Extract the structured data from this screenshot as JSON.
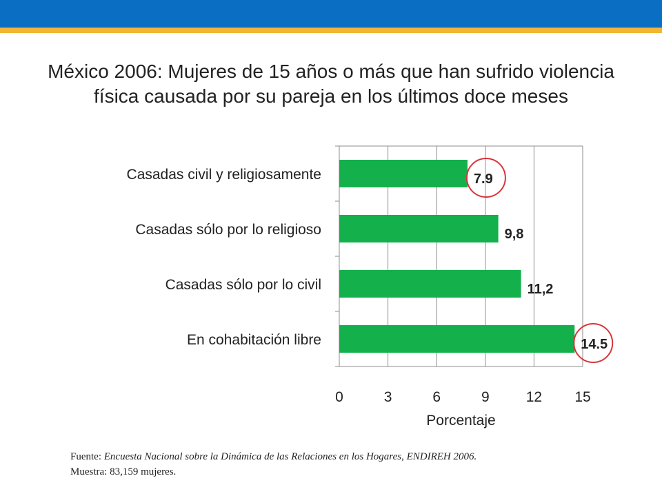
{
  "slide": {
    "title_line1": "México 2006: Mujeres de 15 años o más que han sufrido violencia",
    "title_line2": "física causada por su pareja en los últimos doce meses",
    "source_prefix": "Fuente: ",
    "source_text": "Encuesta Nacional sobre la Dinámica de las Relaciones en los Hogares, ENDIREH 2006.",
    "sample": "Muestra: 83,159 mujeres."
  },
  "colors": {
    "band": "#0a6fc2",
    "stripe": "#f2b634",
    "bar": "#13b04c",
    "highlight_circle": "#d9343a"
  },
  "chart_data": {
    "type": "bar",
    "orientation": "horizontal",
    "categories": [
      "Casadas civil y religiosamente",
      "Casadas sólo por lo religioso",
      "Casadas sólo por lo civil",
      "En cohabitación libre"
    ],
    "values": [
      7.9,
      9.8,
      11.2,
      14.5
    ],
    "value_labels": [
      "7.9",
      "9,8",
      "11,2",
      "14.5"
    ],
    "highlighted": [
      true,
      false,
      false,
      true
    ],
    "xlabel": "Porcentaje",
    "xlim": [
      0,
      15
    ],
    "xticks": [
      0,
      3,
      6,
      9,
      12,
      15
    ],
    "grid": "vertical",
    "legend": "none"
  }
}
